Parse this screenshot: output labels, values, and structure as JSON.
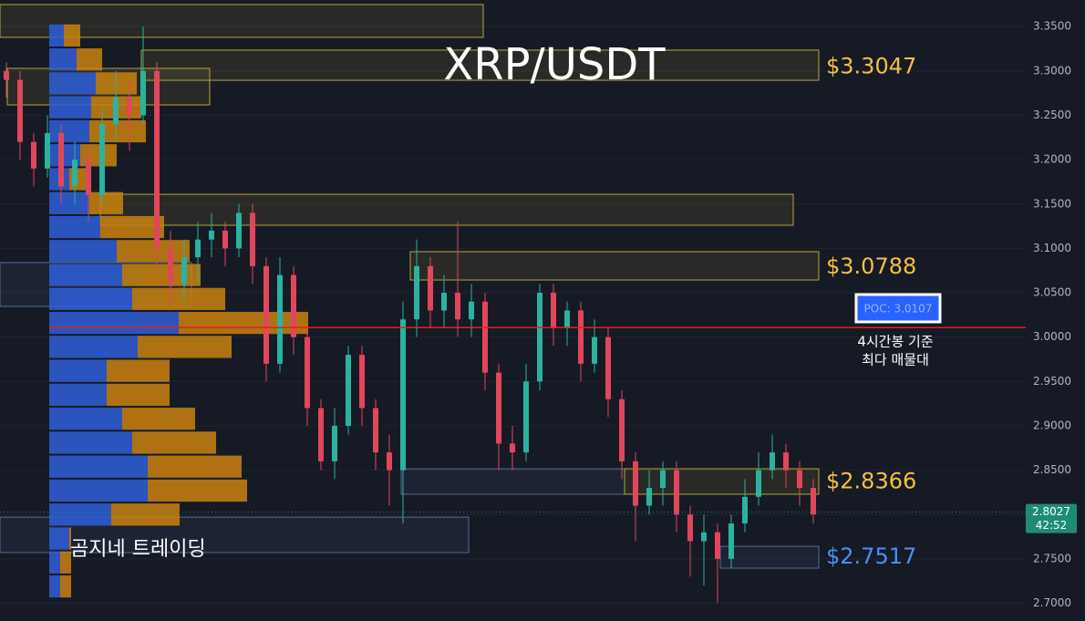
{
  "chart_data": {
    "type": "candlestick",
    "title": "XRP/USDT",
    "watermark": "곰지네 트레이딩",
    "ylim": [
      2.68,
      3.38
    ],
    "yticks": [
      {
        "value": 2.7,
        "label": "2.7000"
      },
      {
        "value": 2.75,
        "label": "2.7500"
      },
      {
        "value": 2.8,
        "label": "2.8000"
      },
      {
        "value": 2.85,
        "label": "2.8500"
      },
      {
        "value": 2.9,
        "label": "2.9000"
      },
      {
        "value": 2.95,
        "label": "2.9500"
      },
      {
        "value": 3.0,
        "label": "3.0000"
      },
      {
        "value": 3.05,
        "label": "3.0500"
      },
      {
        "value": 3.1,
        "label": "3.1000"
      },
      {
        "value": 3.15,
        "label": "3.1500"
      },
      {
        "value": 3.2,
        "label": "3.2000"
      },
      {
        "value": 3.25,
        "label": "3.2500"
      },
      {
        "value": 3.3,
        "label": "3.3000"
      },
      {
        "value": 3.35,
        "label": "3.3500"
      }
    ],
    "grid": true,
    "up_color": "#2bb3a0",
    "down_color": "#e0475c",
    "candles": [
      [
        3.3,
        3.31,
        3.27,
        3.29
      ],
      [
        3.29,
        3.3,
        3.2,
        3.22
      ],
      [
        3.22,
        3.23,
        3.17,
        3.19
      ],
      [
        3.19,
        3.25,
        3.18,
        3.23
      ],
      [
        3.23,
        3.24,
        3.15,
        3.17
      ],
      [
        3.17,
        3.22,
        3.15,
        3.2
      ],
      [
        3.2,
        3.21,
        3.13,
        3.16
      ],
      [
        3.16,
        3.26,
        3.15,
        3.24
      ],
      [
        3.24,
        3.3,
        3.22,
        3.27
      ],
      [
        3.27,
        3.29,
        3.21,
        3.25
      ],
      [
        3.25,
        3.35,
        3.24,
        3.3
      ],
      [
        3.3,
        3.31,
        3.08,
        3.1
      ],
      [
        3.1,
        3.12,
        3.03,
        3.06
      ],
      [
        3.06,
        3.11,
        3.04,
        3.09
      ],
      [
        3.09,
        3.13,
        3.06,
        3.11
      ],
      [
        3.11,
        3.14,
        3.09,
        3.12
      ],
      [
        3.12,
        3.13,
        3.08,
        3.1
      ],
      [
        3.1,
        3.15,
        3.09,
        3.14
      ],
      [
        3.14,
        3.15,
        3.06,
        3.08
      ],
      [
        3.08,
        3.09,
        2.95,
        2.97
      ],
      [
        2.97,
        3.09,
        2.96,
        3.07
      ],
      [
        3.07,
        3.08,
        2.98,
        3.0
      ],
      [
        3.0,
        3.01,
        2.9,
        2.92
      ],
      [
        2.92,
        2.93,
        2.85,
        2.86
      ],
      [
        2.86,
        2.92,
        2.84,
        2.9
      ],
      [
        2.9,
        2.99,
        2.89,
        2.98
      ],
      [
        2.98,
        2.99,
        2.9,
        2.92
      ],
      [
        2.92,
        2.93,
        2.85,
        2.87
      ],
      [
        2.87,
        2.89,
        2.81,
        2.85
      ],
      [
        2.85,
        3.04,
        2.79,
        3.02
      ],
      [
        3.02,
        3.11,
        3.0,
        3.08
      ],
      [
        3.08,
        3.09,
        3.01,
        3.03
      ],
      [
        3.03,
        3.07,
        3.01,
        3.05
      ],
      [
        3.05,
        3.13,
        3.0,
        3.02
      ],
      [
        3.02,
        3.06,
        3.0,
        3.04
      ],
      [
        3.04,
        3.05,
        2.94,
        2.96
      ],
      [
        2.96,
        2.97,
        2.85,
        2.88
      ],
      [
        2.88,
        2.9,
        2.85,
        2.87
      ],
      [
        2.87,
        2.97,
        2.86,
        2.95
      ],
      [
        2.95,
        3.06,
        2.94,
        3.05
      ],
      [
        3.05,
        3.06,
        2.99,
        3.01
      ],
      [
        3.01,
        3.04,
        2.99,
        3.03
      ],
      [
        3.03,
        3.04,
        2.95,
        2.97
      ],
      [
        2.97,
        3.02,
        2.96,
        3.0
      ],
      [
        3.0,
        3.01,
        2.91,
        2.93
      ],
      [
        2.93,
        2.94,
        2.84,
        2.86
      ],
      [
        2.86,
        2.87,
        2.77,
        2.81
      ],
      [
        2.81,
        2.85,
        2.8,
        2.83
      ],
      [
        2.83,
        2.86,
        2.81,
        2.85
      ],
      [
        2.85,
        2.86,
        2.78,
        2.8
      ],
      [
        2.8,
        2.81,
        2.73,
        2.77
      ],
      [
        2.77,
        2.8,
        2.72,
        2.78
      ],
      [
        2.78,
        2.79,
        2.7,
        2.75
      ],
      [
        2.75,
        2.8,
        2.74,
        2.79
      ],
      [
        2.79,
        2.84,
        2.78,
        2.82
      ],
      [
        2.82,
        2.87,
        2.81,
        2.85
      ],
      [
        2.85,
        2.89,
        2.84,
        2.87
      ],
      [
        2.87,
        2.88,
        2.83,
        2.85
      ],
      [
        2.85,
        2.86,
        2.81,
        2.83
      ],
      [
        2.83,
        2.84,
        2.79,
        2.8
      ]
    ],
    "volume_profile": {
      "buy_color": "#2f5fd8",
      "sell_color": "#c9820f",
      "prices": [
        3.34,
        3.313,
        3.286,
        3.259,
        3.232,
        3.205,
        3.178,
        3.151,
        3.124,
        3.097,
        3.07,
        3.043,
        3.016,
        2.989,
        2.962,
        2.935,
        2.908,
        2.881,
        2.854,
        2.827,
        2.8,
        2.773,
        2.746,
        2.719
      ],
      "buy": [
        16,
        30,
        51,
        46,
        44,
        34,
        22,
        44,
        56,
        74,
        80,
        91,
        142,
        97,
        63,
        63,
        80,
        91,
        108,
        108,
        68,
        22,
        12,
        12
      ],
      "sell": [
        18,
        28,
        45,
        55,
        62,
        40,
        24,
        37,
        70,
        80,
        86,
        102,
        142,
        103,
        69,
        69,
        80,
        92,
        103,
        109,
        75,
        2,
        12,
        12
      ]
    },
    "zones": [
      {
        "range": [
          3.3379,
          3.3749
        ],
        "color": "#b9a43a"
      },
      {
        "range": [
          3.2895,
          3.3235
        ],
        "color": "#b9a43a",
        "price": 3.3047,
        "label": "$3.3047",
        "label_color": "#f5c042"
      },
      {
        "range": [
          3.2618,
          3.3029
        ],
        "color": "#b9a43a"
      },
      {
        "range": [
          3.1261,
          3.161
        ],
        "color": "#b9a43a"
      },
      {
        "range": [
          3.0644,
          3.0963
        ],
        "color": "#b9a43a",
        "price": 3.0788,
        "label": "$3.0788",
        "label_color": "#f5c042"
      },
      {
        "range": [
          3.0346,
          3.084
        ],
        "color": "#4f6f96"
      },
      {
        "range": [
          2.8229,
          2.8516
        ],
        "color": "#4f6f96"
      },
      {
        "range": [
          2.8229,
          2.8516
        ],
        "color": "#b9a43a",
        "price": 2.8366,
        "label": "$2.8366",
        "label_color": "#f5c042"
      },
      {
        "range": [
          2.7571,
          2.7971
        ],
        "color": "#4f6f96"
      },
      {
        "range": [
          2.7396,
          2.7642
        ],
        "color": "#4f6f96",
        "price": 2.7517,
        "label": "$2.7517",
        "label_color": "#4d8ef7"
      }
    ],
    "poc": {
      "value": 3.0107,
      "label": "POC: 3.0107",
      "color": "#e0201f",
      "note": [
        "4시간봉 기준",
        "최다 매물대"
      ]
    },
    "last_price": {
      "value": 2.8027,
      "label": "2.8027",
      "countdown": "42:52",
      "color": "#1e8c75"
    }
  }
}
